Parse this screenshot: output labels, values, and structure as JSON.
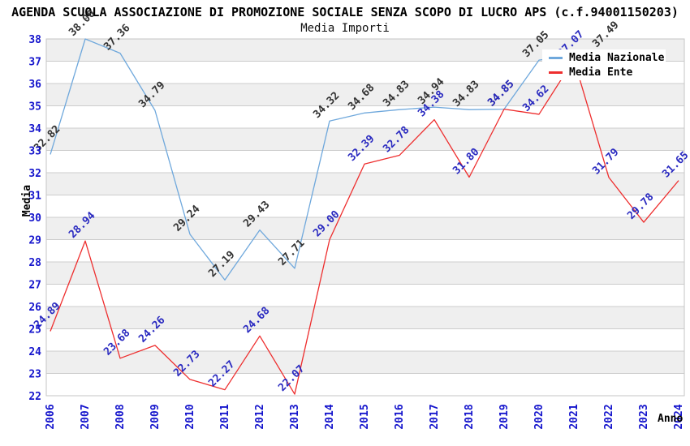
{
  "chart_data": {
    "type": "line",
    "title": "AGENDA SCUOLA ASSOCIAZIONE DI PROMOZIONE SOCIALE SENZA SCOPO DI LUCRO APS (c.f.94001150203)",
    "subtitle": "Media Importi",
    "xlabel": "Anno",
    "ylabel": "Media",
    "x_categories": [
      2006,
      2007,
      2008,
      2009,
      2010,
      2011,
      2012,
      2013,
      2014,
      2015,
      2016,
      2017,
      2018,
      2019,
      2020,
      2021,
      2022,
      2023,
      2024
    ],
    "ylim": [
      22,
      38
    ],
    "y_tick_step": 1,
    "y_ticks": [
      22,
      23,
      24,
      25,
      26,
      27,
      28,
      29,
      30,
      31,
      32,
      33,
      34,
      35,
      36,
      37,
      38
    ],
    "grid": true,
    "legend_position": "top-right",
    "data_labels_visible": true,
    "series": [
      {
        "name": "Media Nazionale",
        "color": "#6fa8dc",
        "label_color": "#333333",
        "points": [
          {
            "year": 2006,
            "value": 32.82
          },
          {
            "year": 2007,
            "value": 38.0
          },
          {
            "year": 2008,
            "value": 37.36
          },
          {
            "year": 2009,
            "value": 34.79
          },
          {
            "year": 2010,
            "value": 29.24
          },
          {
            "year": 2011,
            "value": 27.19
          },
          {
            "year": 2012,
            "value": 29.43
          },
          {
            "year": 2013,
            "value": 27.71
          },
          {
            "year": 2014,
            "value": 34.32
          },
          {
            "year": 2015,
            "value": 34.68
          },
          {
            "year": 2016,
            "value": 34.83
          },
          {
            "year": 2017,
            "value": 34.94
          },
          {
            "year": 2018,
            "value": 34.83
          },
          {
            "year": 2019,
            "value": 34.85
          },
          {
            "year": 2020,
            "value": 37.05
          },
          {
            "year": 2021,
            "value": 37.27,
            "label": ""
          },
          {
            "year": 2022,
            "value": 37.49
          }
        ]
      },
      {
        "name": "Media Ente",
        "color": "#ee2e2e",
        "label_color": "#2a2ac0",
        "points": [
          {
            "year": 2006,
            "value": 24.89
          },
          {
            "year": 2007,
            "value": 28.94
          },
          {
            "year": 2008,
            "value": 23.68
          },
          {
            "year": 2009,
            "value": 24.26
          },
          {
            "year": 2010,
            "value": 22.73
          },
          {
            "year": 2011,
            "value": 22.27
          },
          {
            "year": 2012,
            "value": 24.68
          },
          {
            "year": 2013,
            "value": 22.07
          },
          {
            "year": 2014,
            "value": 29.0
          },
          {
            "year": 2015,
            "value": 32.39
          },
          {
            "year": 2016,
            "value": 32.78
          },
          {
            "year": 2017,
            "value": 34.38
          },
          {
            "year": 2018,
            "value": 31.8
          },
          {
            "year": 2019,
            "value": 34.85
          },
          {
            "year": 2020,
            "value": 34.62
          },
          {
            "year": 2021,
            "value": 37.07
          },
          {
            "year": 2022,
            "value": 31.79
          },
          {
            "year": 2023,
            "value": 29.78
          },
          {
            "year": 2024,
            "value": 31.65
          }
        ]
      }
    ],
    "style": {
      "band_gray": "#efefef",
      "band_white": "#ffffff",
      "grid_color": "#cccccc",
      "border_color": "#c6c6c6",
      "tick_label_color": "#1414cc",
      "background": "#ffffff"
    }
  }
}
